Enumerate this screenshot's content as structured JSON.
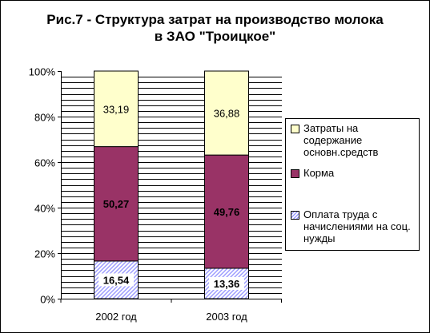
{
  "chart_data": {
    "type": "bar",
    "stacked": "percent",
    "title_line1": "Рис.7 - Структура затрат на производство молока",
    "title_line2": "в ЗАО \"Троицкое\"",
    "categories": [
      "2002 год",
      "2003 год"
    ],
    "series": [
      {
        "name": "Оплата труда с начислениями на соц. нужды",
        "values": [
          16.54,
          13.36
        ],
        "labels": [
          "16,54",
          "13,36"
        ],
        "color": "#9999ff",
        "pattern": "diagonal-hatch"
      },
      {
        "name": "Корма",
        "values": [
          50.27,
          49.76
        ],
        "labels": [
          "50,27",
          "49,76"
        ],
        "color": "#993366"
      },
      {
        "name": "Затраты на содержание основн.средств",
        "values": [
          33.19,
          36.88
        ],
        "labels": [
          "33,19",
          "36,88"
        ],
        "color": "#ffffcc"
      }
    ],
    "legend_order": [
      2,
      1,
      0
    ],
    "yticks": [
      "0%",
      "20%",
      "40%",
      "60%",
      "80%",
      "100%"
    ],
    "ylim": [
      0,
      100
    ],
    "grid": true,
    "legend_position": "right"
  }
}
